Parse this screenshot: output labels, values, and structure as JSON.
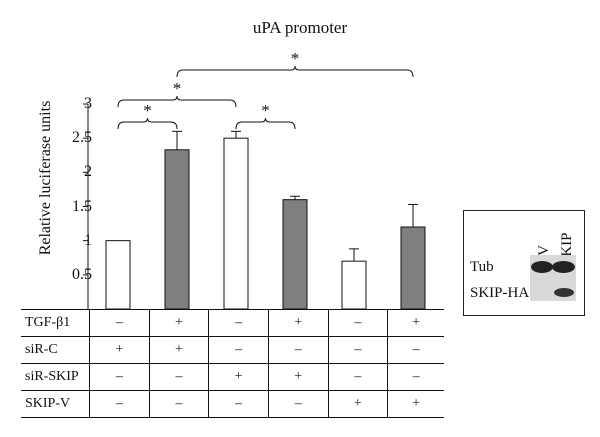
{
  "chart_data": {
    "type": "bar",
    "title": "uPA promoter",
    "ylabel": "Relative luciferase units",
    "ylim": [
      0,
      3
    ],
    "yticks": [
      0.5,
      1,
      1.5,
      2,
      2.5,
      3
    ],
    "ytick_labels": [
      "0.5",
      "1",
      "1.5",
      "2",
      "2.5",
      "3"
    ],
    "values": [
      1.0,
      2.33,
      2.5,
      1.6,
      0.7,
      1.2
    ],
    "errors": [
      0,
      0.27,
      0.1,
      0.05,
      0.18,
      0.33
    ],
    "bar_colors": [
      "#ffffff",
      "#7f7f7f",
      "#ffffff",
      "#7f7f7f",
      "#ffffff",
      "#7f7f7f"
    ],
    "significance": [
      {
        "from": 0,
        "to": 1,
        "label": "*"
      },
      {
        "from": 2,
        "to": 3,
        "label": "*"
      },
      {
        "from": 0,
        "to": 2,
        "label": "*"
      },
      {
        "from": 1,
        "to": 5,
        "label": "*"
      }
    ]
  },
  "conditions": [
    {
      "label": "TGF-β1",
      "values": [
        "–",
        "+",
        "–",
        "+",
        "–",
        "+"
      ]
    },
    {
      "label": "siR-C",
      "values": [
        "+",
        "+",
        "–",
        "–",
        "–",
        "–"
      ]
    },
    {
      "label": "siR-SKIP",
      "values": [
        "–",
        "–",
        "+",
        "+",
        "–",
        "–"
      ]
    },
    {
      "label": "SKIP-V",
      "values": [
        "–",
        "–",
        "–",
        "–",
        "+",
        "+"
      ]
    }
  ],
  "blot": {
    "lanes": [
      "EV",
      "SKIP"
    ],
    "rows": [
      "Tub",
      "SKIP-HA"
    ]
  }
}
